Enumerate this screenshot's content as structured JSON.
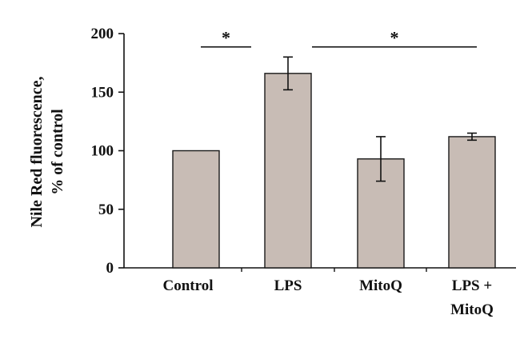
{
  "chart_data": {
    "type": "bar",
    "ylabel_lines": [
      "Nile Red fluorescence,",
      "% of control"
    ],
    "ylim": [
      0,
      200
    ],
    "yticks": [
      0,
      50,
      100,
      150,
      200
    ],
    "categories": [
      {
        "lines": [
          "Control"
        ]
      },
      {
        "lines": [
          "LPS"
        ]
      },
      {
        "lines": [
          "MitoQ"
        ]
      },
      {
        "lines": [
          "LPS +",
          "MitoQ"
        ]
      }
    ],
    "values": [
      100,
      166,
      93,
      112
    ],
    "errors": [
      0,
      14,
      19,
      3
    ],
    "significance": [
      {
        "from": 0,
        "to": 1,
        "label": "*",
        "y": 190
      },
      {
        "from": 1,
        "to": 3,
        "label": "*",
        "y": 190
      }
    ],
    "bar_color": "#c8bcb5",
    "edge_color": "#1a1a1a",
    "grid": false,
    "legend": "none"
  }
}
